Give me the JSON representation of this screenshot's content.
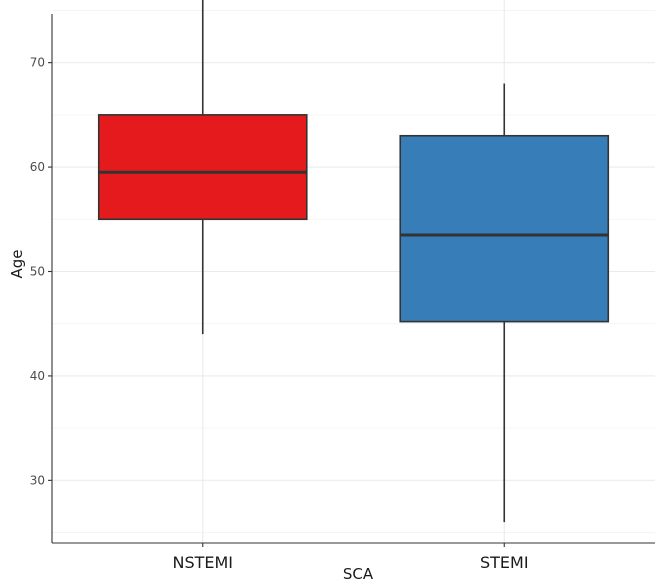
{
  "chart_data": {
    "type": "boxplot",
    "title": "",
    "xlabel": "SCA",
    "ylabel": "Age",
    "ylim": [
      24,
      76
    ],
    "yticks": [
      30,
      40,
      50,
      60,
      70
    ],
    "grid": true,
    "categories": [
      "NSTEMI",
      "STEMI"
    ],
    "boxes": [
      {
        "category": "NSTEMI",
        "min": 44,
        "q1": 55,
        "median": 59.5,
        "q3": 65,
        "max": 76,
        "color": "#e41a1c"
      },
      {
        "category": "STEMI",
        "min": 26,
        "q1": 45.2,
        "median": 53.5,
        "q3": 63,
        "max": 68,
        "color": "#377eb8"
      }
    ]
  }
}
